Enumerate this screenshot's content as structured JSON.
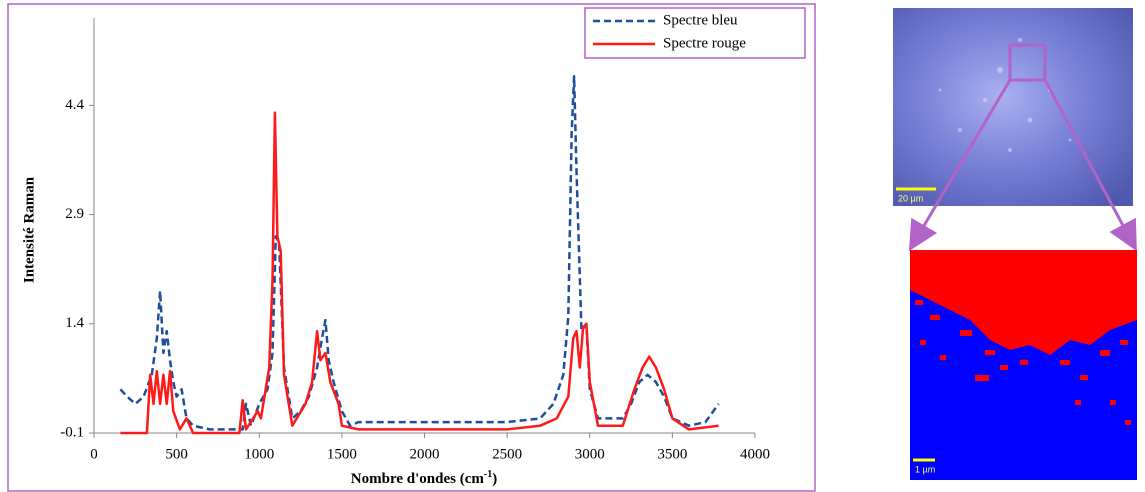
{
  "chart_data": {
    "type": "line",
    "y_label": "Intensité Raman",
    "x_label": "Nombre d'ondes (cm",
    "x_label_sup": "-1",
    "x_label_end": ")",
    "xlim": [
      0,
      4000
    ],
    "xticks": [
      0,
      500,
      1000,
      1500,
      2000,
      2500,
      3000,
      3500,
      4000
    ],
    "ylim": [
      -0.1,
      5.6
    ],
    "yticks": [
      -0.1,
      1.4,
      2.9,
      4.4
    ],
    "legend": "upper right",
    "series": [
      {
        "name": "Spectre bleu",
        "color": "#1f4e9a",
        "dash": true,
        "x": [
          160,
          200,
          250,
          300,
          350,
          380,
          400,
          420,
          440,
          460,
          480,
          500,
          530,
          560,
          600,
          700,
          900,
          920,
          950,
          1000,
          1050,
          1080,
          1100,
          1120,
          1150,
          1200,
          1250,
          1300,
          1350,
          1380,
          1400,
          1420,
          1450,
          1500,
          1550,
          1600,
          2000,
          2500,
          2700,
          2780,
          2840,
          2870,
          2890,
          2905,
          2920,
          2950,
          2980,
          3000,
          3050,
          3200,
          3250,
          3300,
          3350,
          3400,
          3450,
          3500,
          3600,
          3700,
          3780
        ],
        "values": [
          0.5,
          0.4,
          0.3,
          0.4,
          0.7,
          1.2,
          1.85,
          1.0,
          1.3,
          0.9,
          0.6,
          0.4,
          0.5,
          0.1,
          0.0,
          -0.05,
          -0.05,
          0.3,
          0.0,
          0.3,
          0.5,
          1.0,
          2.6,
          2.5,
          0.8,
          0.1,
          0.2,
          0.4,
          0.8,
          1.2,
          1.45,
          0.9,
          0.6,
          0.2,
          0.0,
          0.05,
          0.05,
          0.05,
          0.1,
          0.3,
          0.7,
          1.5,
          4.0,
          4.8,
          3.5,
          1.3,
          1.4,
          0.5,
          0.1,
          0.1,
          0.3,
          0.6,
          0.7,
          0.6,
          0.4,
          0.1,
          0.0,
          0.05,
          0.3
        ]
      },
      {
        "name": "Spectre rouge",
        "color": "#ff1a1a",
        "dash": false,
        "x": [
          160,
          320,
          340,
          360,
          380,
          400,
          420,
          440,
          460,
          480,
          520,
          560,
          600,
          880,
          900,
          920,
          990,
          1010,
          1060,
          1080,
          1095,
          1110,
          1130,
          1150,
          1200,
          1280,
          1320,
          1350,
          1370,
          1400,
          1430,
          1480,
          1500,
          1600,
          2500,
          2700,
          2800,
          2870,
          2900,
          2920,
          2940,
          2960,
          2980,
          3000,
          3050,
          3200,
          3270,
          3320,
          3360,
          3400,
          3450,
          3500,
          3600,
          3780
        ],
        "values": [
          -0.1,
          -0.1,
          0.7,
          0.3,
          0.75,
          0.3,
          0.7,
          0.3,
          0.75,
          0.2,
          -0.05,
          0.1,
          -0.1,
          -0.1,
          0.35,
          -0.05,
          0.2,
          0.1,
          0.8,
          2.0,
          4.3,
          2.6,
          2.4,
          0.7,
          0.0,
          0.3,
          0.6,
          1.3,
          0.9,
          1.0,
          0.6,
          0.3,
          0.0,
          -0.05,
          -0.05,
          0.0,
          0.1,
          0.4,
          1.2,
          1.3,
          0.8,
          1.35,
          1.4,
          0.6,
          0.0,
          0.0,
          0.5,
          0.8,
          0.95,
          0.8,
          0.5,
          0.1,
          -0.05,
          0.0
        ]
      }
    ]
  },
  "images": {
    "top_scale_label": "20 µm",
    "bottom_scale_label": "1 µm"
  }
}
